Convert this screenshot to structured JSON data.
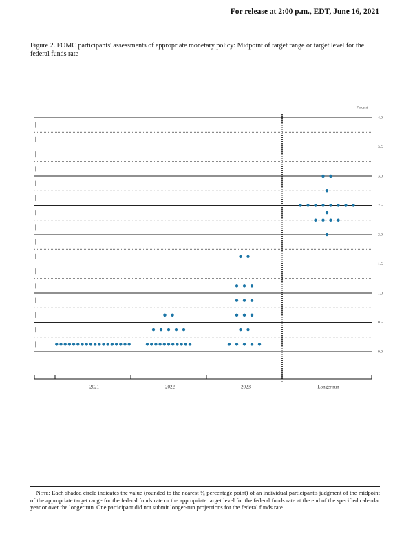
{
  "header": {
    "release": "For release at 2:00 p.m., EDT, June 16, 2021"
  },
  "chart_data": {
    "type": "dot",
    "title": "Figure 2. FOMC participants' assessments of appropriate monetary policy: Midpoint of target range or target level for the federal funds rate",
    "y_label": "Percent",
    "categories": [
      "2021",
      "2022",
      "2023",
      "Longer run"
    ],
    "values": [
      [
        0.125,
        0.125,
        0.125,
        0.125,
        0.125,
        0.125,
        0.125,
        0.125,
        0.125,
        0.125,
        0.125,
        0.125,
        0.125,
        0.125,
        0.125,
        0.125,
        0.125,
        0.125
      ],
      [
        0.125,
        0.125,
        0.125,
        0.125,
        0.125,
        0.125,
        0.125,
        0.125,
        0.125,
        0.125,
        0.125,
        0.375,
        0.375,
        0.375,
        0.375,
        0.375,
        0.625,
        0.625
      ],
      [
        0.125,
        0.125,
        0.125,
        0.125,
        0.125,
        0.375,
        0.375,
        0.625,
        0.625,
        0.625,
        0.875,
        0.875,
        0.875,
        1.125,
        1.125,
        1.125,
        1.625,
        1.625
      ],
      [
        2,
        2.25,
        2.25,
        2.25,
        2.25,
        2.375,
        2.5,
        2.5,
        2.5,
        2.5,
        2.5,
        2.5,
        2.5,
        2.5,
        2.75,
        3,
        3
      ]
    ],
    "color": "#1b75a6",
    "ylim": [
      0,
      4
    ],
    "yticks": [
      {
        "value": 0,
        "label": "0.0"
      },
      0.5,
      {
        "value": 1,
        "label": "1.0"
      },
      1.5,
      {
        "value": 2,
        "label": "2.0"
      },
      2.5,
      {
        "value": 3,
        "label": "3.0"
      },
      3.5,
      {
        "value": 4,
        "label": "4.0"
      }
    ],
    "minor_yticks": [
      0.25,
      0.75,
      1.25,
      1.75,
      2.25,
      2.75,
      3.25,
      3.75
    ],
    "grid": true
  },
  "note": {
    "label": "Note:",
    "text": "Each shaded circle indicates the value (rounded to the nearest ¹⁄₈ percentage point) of an individual participant's judgment of the midpoint of the appropriate target range for the federal funds rate or the appropriate target level for the federal funds rate at the end of the specified calendar year or over the longer run. One participant did not submit longer-run projections for the federal funds rate."
  }
}
